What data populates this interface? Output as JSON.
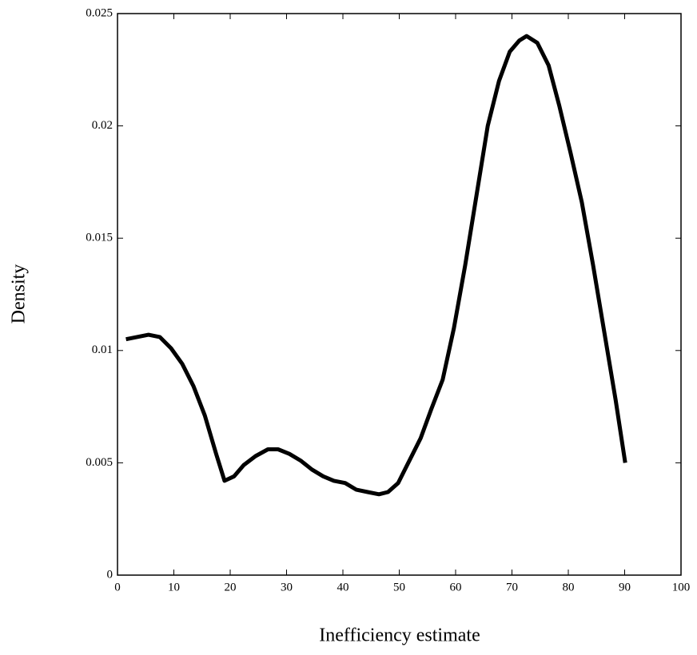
{
  "chart_data": {
    "type": "line",
    "xlabel": "Inefficiency estimate",
    "ylabel": "Density",
    "x": [
      1.5,
      5.5,
      7.5,
      9.5,
      11.5,
      13.5,
      15.5,
      17.5,
      19,
      20.7,
      22.4,
      24.5,
      26.7,
      28.5,
      30.5,
      32.5,
      34.5,
      36.5,
      38.4,
      40.4,
      42.4,
      44.4,
      46.4,
      48,
      49.8,
      51.8,
      53.8,
      55.7,
      57.7,
      59.7,
      61.7,
      63.7,
      65.7,
      67.7,
      69.6,
      71.3,
      72.6,
      74.5,
      76.5,
      78.4,
      80.4,
      82.4,
      84.4,
      86.4,
      88.4,
      90.1
    ],
    "values": [
      0.0105,
      0.0107,
      0.0106,
      0.0101,
      0.0094,
      0.0084,
      0.0071,
      0.0054,
      0.0042,
      0.0044,
      0.0049,
      0.0053,
      0.0056,
      0.0056,
      0.0054,
      0.0051,
      0.0047,
      0.0044,
      0.0042,
      0.0041,
      0.0038,
      0.0037,
      0.0036,
      0.0037,
      0.0041,
      0.0051,
      0.0061,
      0.0074,
      0.0087,
      0.011,
      0.0138,
      0.0169,
      0.02,
      0.022,
      0.0233,
      0.0238,
      0.024,
      0.0237,
      0.0227,
      0.0209,
      0.0188,
      0.0166,
      0.0138,
      0.0108,
      0.0078,
      0.005
    ],
    "color": "#000000",
    "xlim": [
      0,
      100
    ],
    "xticks": [
      0,
      10,
      20,
      30,
      40,
      50,
      60,
      70,
      80,
      90,
      100
    ],
    "ylim": [
      0,
      0.025
    ],
    "yticks": [
      0,
      0.005,
      0.01,
      0.015,
      0.02,
      0.025
    ],
    "grid": false
  }
}
